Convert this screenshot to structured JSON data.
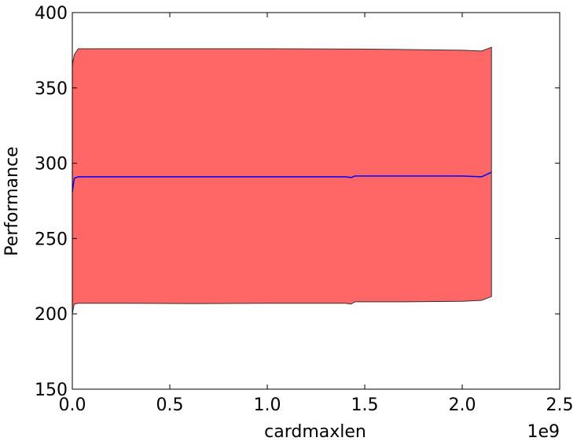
{
  "chart_data": {
    "type": "band-line",
    "xlabel": "cardmaxlen",
    "ylabel": "Performance",
    "x_offset_label": "1e9",
    "x": [
      0,
      0.01,
      0.03,
      0.05,
      0.3,
      0.6,
      1.0,
      1.4,
      1.43,
      1.45,
      1.7,
      2.0,
      2.1,
      2.15
    ],
    "values": [
      281,
      290,
      291,
      291,
      291,
      291,
      291,
      291,
      290.5,
      291.5,
      291.5,
      291.5,
      291,
      294
    ],
    "band_upper": [
      365,
      372,
      376,
      376,
      376,
      376,
      376,
      375.8,
      375.8,
      375.8,
      375.5,
      375,
      374.5,
      377
    ],
    "band_lower": [
      200,
      206.5,
      207,
      207,
      207,
      206.8,
      207,
      207,
      206.5,
      208,
      208,
      208.3,
      209,
      211.5
    ],
    "line_color": "#0000ff",
    "fill_color": "#ff6666",
    "xlim": [
      0,
      2.5
    ],
    "xticks": [
      {
        "value": 0,
        "label": "0.0"
      },
      {
        "value": 0.5,
        "label": "0.5"
      },
      {
        "value": 1,
        "label": "1.0"
      },
      {
        "value": 1.5,
        "label": "1.5"
      },
      {
        "value": 2,
        "label": "2.0"
      },
      {
        "value": 2.5,
        "label": "2.5"
      }
    ],
    "ylim": [
      150,
      400
    ],
    "yticks": [
      150,
      200,
      250,
      300,
      350,
      400
    ]
  }
}
